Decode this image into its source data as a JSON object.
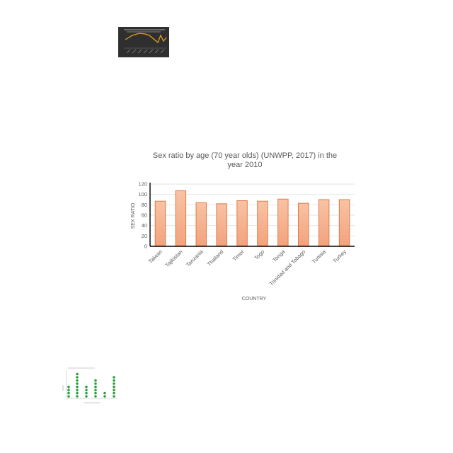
{
  "chart_data": [
    {
      "type": "line",
      "theme": "dark thumbnail",
      "colors": {
        "background": "#2f2f2f",
        "line": "#e0a020",
        "text": "#cfcfcf"
      }
    },
    {
      "type": "bar",
      "title": "Sex ratio by age (70 year olds) (UNWPP, 2017) in the year 2010",
      "title_lines": [
        "Sex ratio by age (70 year olds) (UNWPP, 2017) in the",
        "year 2010"
      ],
      "xlabel": "COUNTRY",
      "ylabel": "SEX RATIO",
      "ylim": [
        0,
        120
      ],
      "yticks": [
        0,
        20,
        40,
        60,
        80,
        100,
        120
      ],
      "grid": true,
      "categories": [
        "Taiwan",
        "Tajikistan",
        "Tanzania",
        "Thailand",
        "Timor",
        "Togo",
        "Tonga",
        "Trinidad and Tobago",
        "Tunisia",
        "Turkey"
      ],
      "values": [
        87,
        107,
        84,
        82,
        88,
        87,
        91,
        83,
        90,
        90
      ],
      "colors": {
        "bar_fill_top": "#f8c3a4",
        "bar_fill_bottom": "#f3a27c",
        "bar_stroke": "#e07b4a",
        "grid": "#d9d9d9",
        "axis": "#000000",
        "text": "#595959"
      }
    },
    {
      "type": "scatter",
      "theme": "light thumbnail",
      "colors": {
        "marker": "#2e9e3e",
        "text": "#7a7a7a"
      }
    }
  ]
}
